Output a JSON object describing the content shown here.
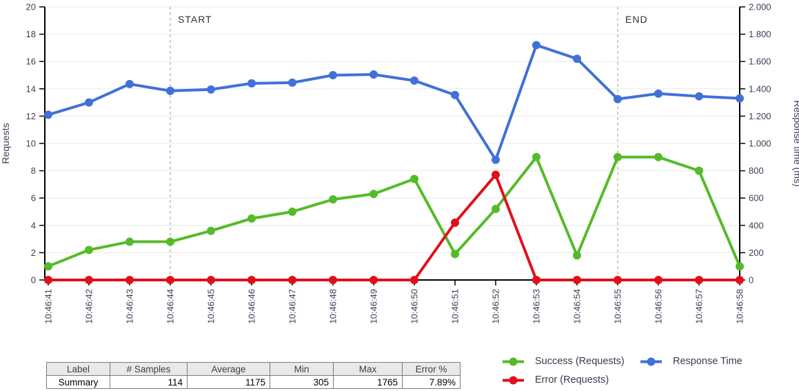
{
  "chart_data": {
    "type": "line",
    "categories": [
      "10:46:41",
      "10:46:42",
      "10:46:43",
      "10:46:44",
      "10:46:45",
      "10:46:46",
      "10:46:47",
      "10:46:48",
      "10:46:49",
      "10:46:50",
      "10:46:51",
      "10:46:52",
      "10:46:53",
      "10:46:54",
      "10:46:55",
      "10:46:56",
      "10:46:57",
      "10:46:58"
    ],
    "series": [
      {
        "name": "Success (Requests)",
        "axis": "left",
        "color": "#54bb28",
        "values": [
          1,
          2.2,
          2.8,
          2.8,
          3.6,
          4.5,
          5,
          5.9,
          6.3,
          7.4,
          1.9,
          5.2,
          9,
          1.8,
          9,
          9,
          8,
          1
        ]
      },
      {
        "name": "Error (Requests)",
        "axis": "left",
        "color": "#e01019",
        "values": [
          0,
          0,
          0,
          0,
          0,
          0,
          0,
          0,
          0,
          0,
          4.2,
          7.7,
          0,
          0,
          0,
          0,
          0,
          0
        ]
      },
      {
        "name": "Response Time",
        "axis": "right",
        "color": "#4170d8",
        "values": [
          1210,
          1300,
          1435,
          1385,
          1395,
          1440,
          1445,
          1500,
          1505,
          1460,
          1355,
          880,
          1720,
          1620,
          1325,
          1365,
          1345,
          1330
        ]
      }
    ],
    "axes": {
      "left": {
        "label": "Requests",
        "min": 0,
        "max": 20,
        "step": 2,
        "thousands_separator": ""
      },
      "right": {
        "label": "Response time (ms)",
        "min": 0,
        "max": 2000,
        "step": 200,
        "thousands_separator": "."
      }
    },
    "annotations": [
      {
        "label": "START",
        "category": "10:46:44"
      },
      {
        "label": "END",
        "category": "10:46:55"
      }
    ],
    "grid": "horizontal",
    "legend_position": "bottom-right"
  },
  "legend": {
    "items": [
      {
        "label": "Success (Requests)",
        "color": "#54bb28"
      },
      {
        "label": "Response Time",
        "color": "#4170d8"
      },
      {
        "label": "Error (Requests)",
        "color": "#e01019"
      }
    ]
  },
  "summary_table": {
    "headers": [
      "Label",
      "# Samples",
      "Average",
      "Min",
      "Max",
      "Error %"
    ],
    "rows": [
      [
        "Summary",
        "114",
        "1175",
        "305",
        "1765",
        "7.89%"
      ]
    ]
  },
  "colors": {
    "grid": "#e8e8e8",
    "axis": "#000000",
    "annotation_line": "#9a9a9a",
    "tick_text": "#3d3d54"
  }
}
